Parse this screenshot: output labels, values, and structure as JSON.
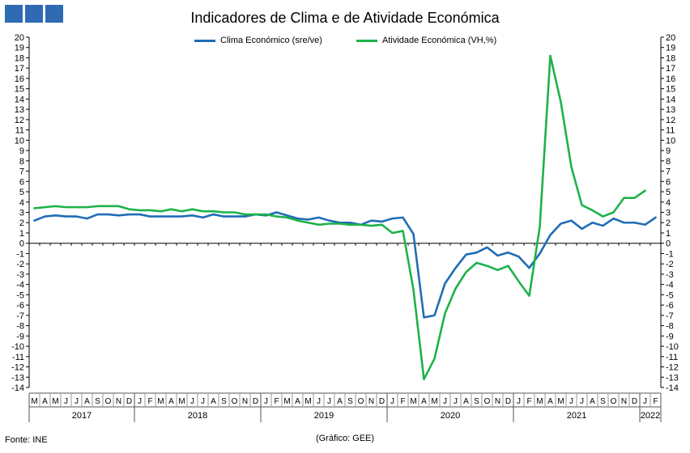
{
  "header": {
    "title": "Indicadores de Clima e de Atividade Económica",
    "logo_color": "#2e6bb3"
  },
  "footer": {
    "source": "Fonte: INE",
    "credit": "(Gráfico: GEE)"
  },
  "chart_data": {
    "type": "line",
    "title": "Indicadores de Clima e de Atividade Económica",
    "ylim": [
      -14,
      20
    ],
    "yticks": [
      20,
      19,
      18,
      17,
      16,
      15,
      14,
      13,
      12,
      11,
      10,
      9,
      8,
      7,
      6,
      5,
      4,
      3,
      2,
      1,
      0,
      -1,
      -2,
      -3,
      -4,
      -5,
      -6,
      -7,
      -8,
      -9,
      -10,
      -11,
      -12,
      -13,
      -14
    ],
    "month_labels": [
      "M",
      "A",
      "M",
      "J",
      "J",
      "A",
      "S",
      "O",
      "N",
      "D",
      "J",
      "F",
      "M",
      "A",
      "M",
      "J",
      "J",
      "A",
      "S",
      "O",
      "N",
      "D",
      "J",
      "F",
      "M",
      "A",
      "M",
      "J",
      "J",
      "A",
      "S",
      "O",
      "N",
      "D",
      "J",
      "F",
      "M",
      "A",
      "M",
      "J",
      "J",
      "A",
      "S",
      "O",
      "N",
      "D",
      "J",
      "F",
      "M",
      "A",
      "M",
      "J",
      "J",
      "A",
      "S",
      "O",
      "N",
      "D",
      "J",
      "F"
    ],
    "years": [
      {
        "label": "2017",
        "start": 0,
        "count": 10
      },
      {
        "label": "2018",
        "start": 10,
        "count": 12
      },
      {
        "label": "2019",
        "start": 22,
        "count": 12
      },
      {
        "label": "2020",
        "start": 34,
        "count": 12
      },
      {
        "label": "2021",
        "start": 46,
        "count": 12
      },
      {
        "label": "2022",
        "start": 58,
        "count": 2
      }
    ],
    "series": [
      {
        "name": "Clima Económico (sre/ve)",
        "color": "#1f6db5",
        "values": [
          2.2,
          2.6,
          2.7,
          2.6,
          2.6,
          2.4,
          2.8,
          2.8,
          2.7,
          2.8,
          2.8,
          2.6,
          2.6,
          2.6,
          2.6,
          2.7,
          2.5,
          2.8,
          2.6,
          2.6,
          2.6,
          2.8,
          2.7,
          3.0,
          2.7,
          2.4,
          2.3,
          2.5,
          2.2,
          2.0,
          2.0,
          1.8,
          2.2,
          2.1,
          2.4,
          2.5,
          0.9,
          -7.2,
          -7.0,
          -3.9,
          -2.4,
          -1.1,
          -0.9,
          -0.4,
          -1.2,
          -0.9,
          -1.3,
          -2.4,
          -1.0,
          0.8,
          1.9,
          2.2,
          1.4,
          2.0,
          1.7,
          2.4,
          2.0,
          2.0,
          1.8,
          2.5
        ]
      },
      {
        "name": "Atividade Económica (VH,%)",
        "color": "#1db24a",
        "values": [
          3.4,
          3.5,
          3.6,
          3.5,
          3.5,
          3.5,
          3.6,
          3.6,
          3.6,
          3.3,
          3.2,
          3.2,
          3.1,
          3.3,
          3.1,
          3.3,
          3.1,
          3.1,
          3.0,
          3.0,
          2.8,
          2.8,
          2.8,
          2.6,
          2.5,
          2.2,
          2.0,
          1.8,
          1.9,
          1.9,
          1.8,
          1.8,
          1.7,
          1.8,
          1.0,
          1.2,
          -4.5,
          -13.2,
          -11.2,
          -6.8,
          -4.4,
          -2.8,
          -1.9,
          -2.2,
          -2.6,
          -2.2,
          -3.7,
          -5.1,
          1.6,
          18.2,
          13.7,
          7.4,
          3.7,
          3.2,
          2.6,
          3.0,
          4.4,
          4.4,
          5.1,
          null
        ]
      }
    ]
  }
}
